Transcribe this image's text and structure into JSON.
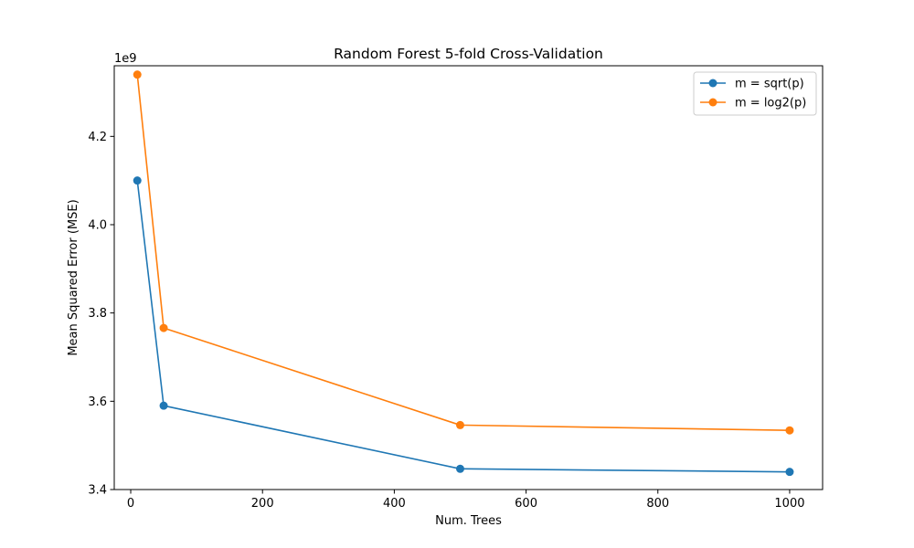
{
  "chart_data": {
    "type": "line",
    "title": "Random Forest 5-fold Cross-Validation",
    "xlabel": "Num. Trees",
    "ylabel": "Mean Squared Error (MSE)",
    "y_offset_label": "1e9",
    "y_scale": 1000000000,
    "x": [
      10,
      50,
      500,
      1000
    ],
    "xlim": [
      -25,
      1050
    ],
    "ylim": [
      3.4,
      4.36
    ],
    "xticks": [
      0,
      200,
      400,
      600,
      800,
      1000
    ],
    "xtick_labels": [
      "0",
      "200",
      "400",
      "600",
      "800",
      "1000"
    ],
    "yticks": [
      3.4,
      3.6,
      3.8,
      4.0,
      4.2
    ],
    "ytick_labels": [
      "3.4",
      "3.6",
      "3.8",
      "4.0",
      "4.2"
    ],
    "grid": false,
    "legend_position": "top-right",
    "series": [
      {
        "name": "m = sqrt(p)",
        "color": "#1f77b4",
        "marker": "circle",
        "values": [
          4.1,
          3.59,
          3.447,
          3.44
        ]
      },
      {
        "name": "m = log2(p)",
        "color": "#ff7f0e",
        "marker": "circle",
        "values": [
          4.34,
          3.766,
          3.546,
          3.534
        ]
      }
    ]
  }
}
